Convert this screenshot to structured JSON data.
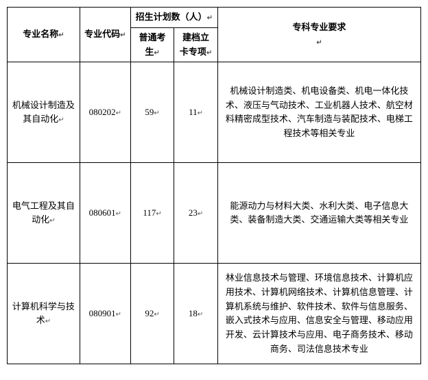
{
  "headers": {
    "name": "专业名称",
    "code": "专业代码",
    "plan_group": "招生计划数（人）",
    "normal": "普通考生",
    "special": "建档立卡专项",
    "requirement": "专科专业要求"
  },
  "rows": [
    {
      "name": "机械设计制造及其自动化",
      "code": "080202",
      "normal": "59",
      "special": "11",
      "requirement": "机械设计制造类、机电设备类、机电一体化技术、液压与气动技术、工业机器人技术、航空材料精密成型技术、汽车制造与装配技术、电梯工程技术等相关专业"
    },
    {
      "name": "电气工程及其自动化",
      "code": "080601",
      "normal": "117",
      "special": "23",
      "requirement": "能源动力与材料大类、水利大类、电子信息大类、装备制造大类、交通运输大类等相关专业"
    },
    {
      "name": "计算机科学与技术",
      "code": "080901",
      "normal": "92",
      "special": "18",
      "requirement": "林业信息技术与管理、环境信息技术、计算机应用技术、计算机网络技术、计算机信息管理、计算机系统与维护、软件技术、软件与信息服务、嵌入式技术与应用、信息安全与管理、移动应用开发、云计算技术与应用、电子商务技术、移动商务、司法信息技术专业"
    }
  ],
  "marker": "↵"
}
